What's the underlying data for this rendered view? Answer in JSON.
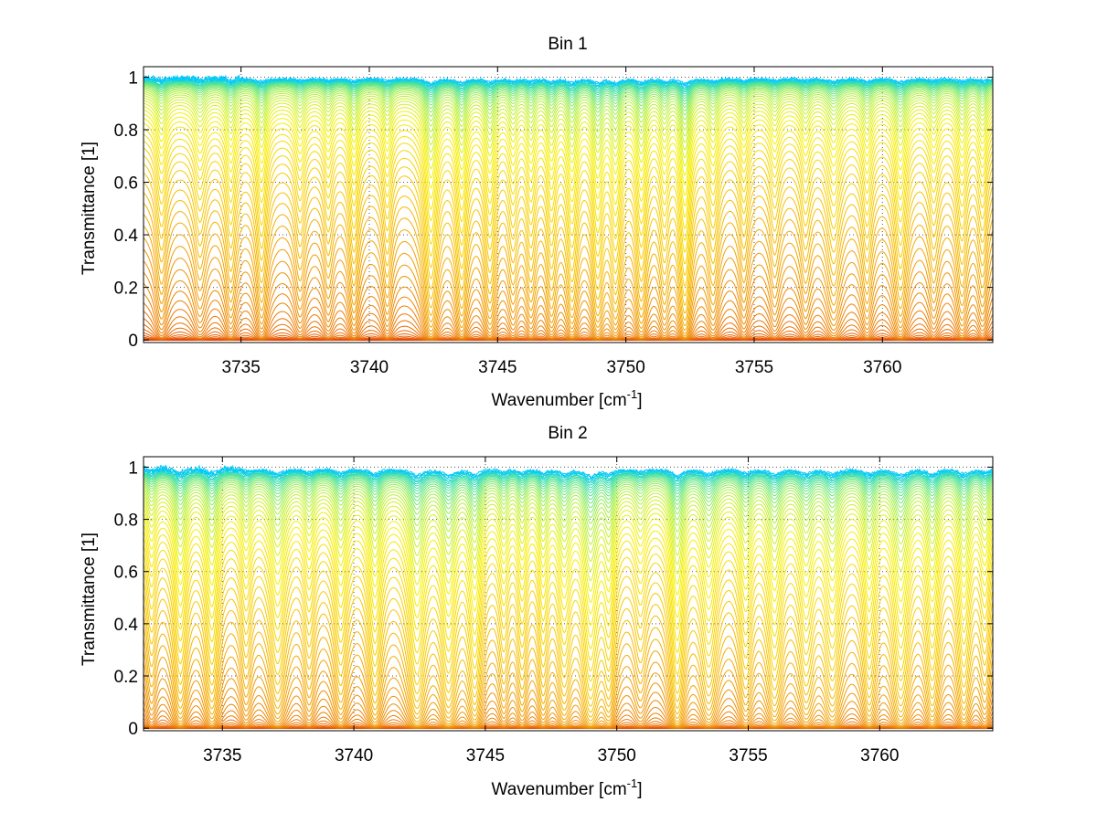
{
  "chart_data": [
    {
      "type": "line",
      "title": "Bin 1",
      "xlabel": "Wavenumber [cm",
      "xlabel_sup": "-1",
      "xlabel_end": "]",
      "ylabel": "Transmittance [1]",
      "xlim": [
        3731.2,
        3764.3
      ],
      "ylim": [
        -0.01,
        1.04
      ],
      "xticks": [
        3735,
        3740,
        3745,
        3750,
        3755,
        3760
      ],
      "yticks": [
        0,
        0.2,
        0.4,
        0.6,
        0.8,
        1
      ],
      "ytick_labels": [
        "0",
        "0.2",
        "0.4",
        "0.6",
        "0.8",
        "1"
      ],
      "grid": true,
      "colormap": [
        "#00c8ff",
        "#40e0a0",
        "#b0f040",
        "#f8f000",
        "#f8c800",
        "#f09000",
        "#e86000",
        "#e03000",
        "#d81800"
      ],
      "series_count": 70,
      "depth_range": [
        0,
        1
      ],
      "absorption_lines": [
        {
          "x": 3731.9,
          "depth": 0.25,
          "width": 0.22
        },
        {
          "x": 3733.4,
          "depth": 0.22,
          "width": 0.25
        },
        {
          "x": 3734.6,
          "depth": 0.28,
          "width": 0.22
        },
        {
          "x": 3735.8,
          "depth": 0.35,
          "width": 0.22
        },
        {
          "x": 3737.3,
          "depth": 0.22,
          "width": 0.22
        },
        {
          "x": 3738.4,
          "depth": 0.2,
          "width": 0.2
        },
        {
          "x": 3739.4,
          "depth": 0.3,
          "width": 0.2
        },
        {
          "x": 3740.7,
          "depth": 0.25,
          "width": 0.2
        },
        {
          "x": 3742.4,
          "depth": 0.55,
          "width": 0.25
        },
        {
          "x": 3743.6,
          "depth": 0.45,
          "width": 0.22
        },
        {
          "x": 3744.7,
          "depth": 0.4,
          "width": 0.22
        },
        {
          "x": 3745.6,
          "depth": 0.25,
          "width": 0.2
        },
        {
          "x": 3746.3,
          "depth": 0.3,
          "width": 0.2
        },
        {
          "x": 3747.1,
          "depth": 0.35,
          "width": 0.2
        },
        {
          "x": 3747.9,
          "depth": 0.45,
          "width": 0.22
        },
        {
          "x": 3748.9,
          "depth": 0.5,
          "width": 0.22
        },
        {
          "x": 3749.6,
          "depth": 0.45,
          "width": 0.22
        },
        {
          "x": 3750.6,
          "depth": 0.45,
          "width": 0.22
        },
        {
          "x": 3751.5,
          "depth": 0.3,
          "width": 0.2
        },
        {
          "x": 3752.3,
          "depth": 0.6,
          "width": 0.22
        },
        {
          "x": 3753.4,
          "depth": 0.28,
          "width": 0.22
        },
        {
          "x": 3754.6,
          "depth": 0.22,
          "width": 0.2
        },
        {
          "x": 3755.8,
          "depth": 0.2,
          "width": 0.22
        },
        {
          "x": 3757.0,
          "depth": 0.22,
          "width": 0.22
        },
        {
          "x": 3758.1,
          "depth": 0.3,
          "width": 0.28
        },
        {
          "x": 3759.4,
          "depth": 0.28,
          "width": 0.22
        },
        {
          "x": 3760.7,
          "depth": 0.4,
          "width": 0.25
        },
        {
          "x": 3762.0,
          "depth": 0.22,
          "width": 0.22
        },
        {
          "x": 3763.1,
          "depth": 0.3,
          "width": 0.22
        },
        {
          "x": 3763.9,
          "depth": 0.25,
          "width": 0.2
        }
      ]
    },
    {
      "type": "line",
      "title": "Bin 2",
      "xlabel": "Wavenumber [cm",
      "xlabel_sup": "-1",
      "xlabel_end": "]",
      "ylabel": "Transmittance [1]",
      "xlim": [
        3732.0,
        3764.3
      ],
      "ylim": [
        -0.01,
        1.04
      ],
      "xticks": [
        3735,
        3740,
        3745,
        3750,
        3755,
        3760
      ],
      "yticks": [
        0,
        0.2,
        0.4,
        0.6,
        0.8,
        1
      ],
      "ytick_labels": [
        "0",
        "0.2",
        "0.4",
        "0.6",
        "0.8",
        "1"
      ],
      "grid": true,
      "colormap": [
        "#00c8ff",
        "#40e0a0",
        "#b0f040",
        "#f8f000",
        "#f8c800",
        "#f09000",
        "#e86000",
        "#e03000",
        "#d81800"
      ],
      "series_count": 70,
      "depth_range": [
        0,
        1
      ],
      "absorption_lines": [
        {
          "x": 3732.3,
          "depth": 0.3,
          "width": 0.2
        },
        {
          "x": 3733.4,
          "depth": 0.6,
          "width": 0.25
        },
        {
          "x": 3734.6,
          "depth": 0.6,
          "width": 0.25
        },
        {
          "x": 3735.9,
          "depth": 0.35,
          "width": 0.22
        },
        {
          "x": 3737.1,
          "depth": 0.6,
          "width": 0.3
        },
        {
          "x": 3738.3,
          "depth": 0.35,
          "width": 0.22
        },
        {
          "x": 3739.5,
          "depth": 0.5,
          "width": 0.25
        },
        {
          "x": 3740.8,
          "depth": 0.6,
          "width": 0.25
        },
        {
          "x": 3742.4,
          "depth": 0.8,
          "width": 0.3
        },
        {
          "x": 3743.6,
          "depth": 0.75,
          "width": 0.28
        },
        {
          "x": 3744.6,
          "depth": 0.7,
          "width": 0.25
        },
        {
          "x": 3745.7,
          "depth": 0.35,
          "width": 0.2
        },
        {
          "x": 3746.4,
          "depth": 0.4,
          "width": 0.2
        },
        {
          "x": 3747.2,
          "depth": 0.45,
          "width": 0.2
        },
        {
          "x": 3748.0,
          "depth": 0.55,
          "width": 0.25
        },
        {
          "x": 3749.0,
          "depth": 0.85,
          "width": 0.28
        },
        {
          "x": 3749.7,
          "depth": 0.55,
          "width": 0.22
        },
        {
          "x": 3750.9,
          "depth": 0.3,
          "width": 0.25
        },
        {
          "x": 3752.3,
          "depth": 0.8,
          "width": 0.25
        },
        {
          "x": 3753.5,
          "depth": 0.6,
          "width": 0.3
        },
        {
          "x": 3754.9,
          "depth": 0.5,
          "width": 0.25
        },
        {
          "x": 3756.0,
          "depth": 0.62,
          "width": 0.28
        },
        {
          "x": 3757.2,
          "depth": 0.55,
          "width": 0.28
        },
        {
          "x": 3758.2,
          "depth": 0.62,
          "width": 0.3
        },
        {
          "x": 3759.6,
          "depth": 0.6,
          "width": 0.25
        },
        {
          "x": 3760.8,
          "depth": 0.75,
          "width": 0.3
        },
        {
          "x": 3762.0,
          "depth": 0.62,
          "width": 0.25
        },
        {
          "x": 3763.2,
          "depth": 0.6,
          "width": 0.25
        },
        {
          "x": 3764.0,
          "depth": 0.4,
          "width": 0.22
        }
      ]
    }
  ]
}
